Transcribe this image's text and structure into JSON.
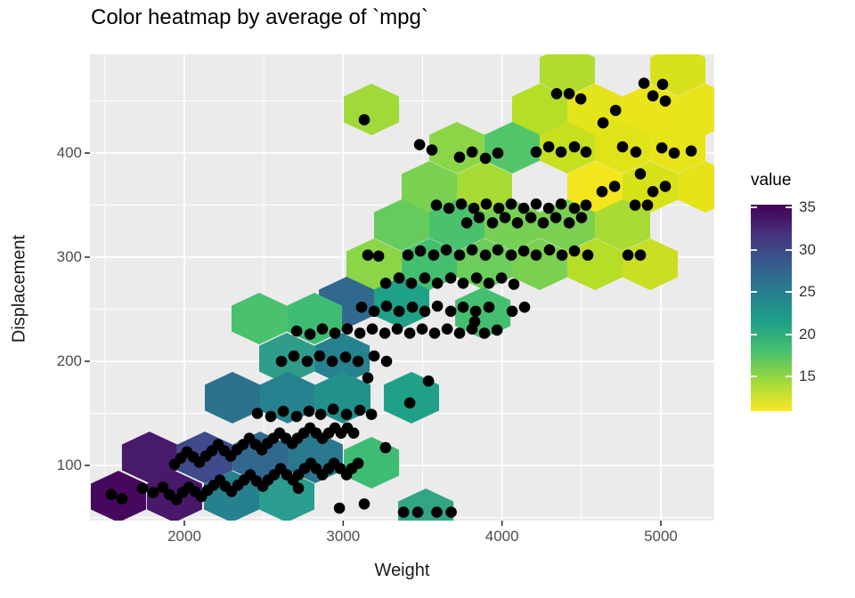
{
  "title": "Color heatmap by average of `mpg`",
  "chart_data": {
    "type": "heatmap",
    "subtype": "hexbin-with-points",
    "title": "Color heatmap by average of `mpg`",
    "xlabel": "Weight",
    "ylabel": "Displacement",
    "x_ticks": [
      2000,
      3000,
      4000,
      5000
    ],
    "x_minor_ticks": [
      1500,
      2500,
      3500,
      4500
    ],
    "y_ticks": [
      100,
      200,
      300,
      400
    ],
    "y_minor_ticks": [
      50,
      150,
      250,
      350,
      450
    ],
    "xlim": [
      1405,
      5340
    ],
    "ylim": [
      47,
      495
    ],
    "grid": true,
    "panel_bg": "#ebebeb",
    "grid_color": "#ffffff",
    "point_color": "#000000",
    "legend": {
      "title": "value",
      "ticks": [
        35,
        30,
        25,
        20,
        15
      ],
      "range": [
        11,
        35.3
      ],
      "position": "right",
      "gradient_top_to_bottom": [
        "#440154",
        "#46327e",
        "#365c8d",
        "#277f8e",
        "#1fa187",
        "#4ac16d",
        "#9fda3a",
        "#fde725"
      ]
    },
    "hex_width_x_units": 345,
    "hex_height_y_units": 49.6,
    "hexbins": [
      {
        "wt": 4411,
        "disp": 479.5,
        "value": 16.1,
        "color": "#b0dd2f"
      },
      {
        "wt": 3178,
        "disp": 441.9,
        "value": 17.0,
        "color": "#a0da39"
      },
      {
        "wt": 4237,
        "disp": 441.9,
        "value": 16.0,
        "color": "#b5de26"
      },
      {
        "wt": 4585,
        "disp": 441.9,
        "value": 13.0,
        "color": "#e4e41b"
      },
      {
        "wt": 4933,
        "disp": 441.9,
        "value": 12.7,
        "color": "#eae51a"
      },
      {
        "wt": 5281,
        "disp": 441.9,
        "value": 12.8,
        "color": "#e8e51b"
      },
      {
        "wt": 5107,
        "disp": 479.5,
        "value": 13.8,
        "color": "#d8e21c"
      },
      {
        "wt": 3716,
        "disp": 405.1,
        "value": 18.0,
        "color": "#8bd646"
      },
      {
        "wt": 4064,
        "disp": 405.1,
        "value": 20.5,
        "color": "#52c569"
      },
      {
        "wt": 4411,
        "disp": 405.1,
        "value": 15.0,
        "color": "#c6e01f"
      },
      {
        "wt": 4759,
        "disp": 405.1,
        "value": 13.2,
        "color": "#e0e318"
      },
      {
        "wt": 5107,
        "disp": 405.1,
        "value": 12.8,
        "color": "#e8e41a"
      },
      {
        "wt": 3542,
        "disp": 367.5,
        "value": 18.8,
        "color": "#7ad151"
      },
      {
        "wt": 3890,
        "disp": 367.5,
        "value": 16.8,
        "color": "#a5db33"
      },
      {
        "wt": 4585,
        "disp": 367.5,
        "value": 12.0,
        "color": "#f4e61c"
      },
      {
        "wt": 4933,
        "disp": 367.5,
        "value": 13.8,
        "color": "#d8e219"
      },
      {
        "wt": 5281,
        "disp": 367.5,
        "value": 12.9,
        "color": "#e6e419"
      },
      {
        "wt": 3368,
        "disp": 330.8,
        "value": 19.7,
        "color": "#66cb5d"
      },
      {
        "wt": 3716,
        "disp": 330.8,
        "value": 20.8,
        "color": "#4ac16d"
      },
      {
        "wt": 4064,
        "disp": 330.8,
        "value": 19.0,
        "color": "#75d054"
      },
      {
        "wt": 4411,
        "disp": 330.8,
        "value": 18.8,
        "color": "#7ad151"
      },
      {
        "wt": 4759,
        "disp": 330.8,
        "value": 16.7,
        "color": "#a8db34"
      },
      {
        "wt": 3194,
        "disp": 293.2,
        "value": 18.0,
        "color": "#8bd646"
      },
      {
        "wt": 3542,
        "disp": 293.2,
        "value": 21.0,
        "color": "#44bf70"
      },
      {
        "wt": 3890,
        "disp": 293.2,
        "value": 19.5,
        "color": "#6ccd5a"
      },
      {
        "wt": 4237,
        "disp": 293.2,
        "value": 18.8,
        "color": "#7ad151"
      },
      {
        "wt": 4585,
        "disp": 293.2,
        "value": 16.0,
        "color": "#b5de29"
      },
      {
        "wt": 4933,
        "disp": 293.2,
        "value": 14.8,
        "color": "#cade24"
      },
      {
        "wt": 3021,
        "disp": 256.4,
        "value": 27.5,
        "color": "#31688e"
      },
      {
        "wt": 3368,
        "disp": 256.4,
        "value": 23.5,
        "color": "#1fa187"
      },
      {
        "wt": 3879,
        "disp": 246.2,
        "value": 21.0,
        "color": "#44bf70"
      },
      {
        "wt": 2471,
        "disp": 241.0,
        "value": 20.8,
        "color": "#4ac16d"
      },
      {
        "wt": 2819,
        "disp": 241.0,
        "value": 21.5,
        "color": "#3fbc73"
      },
      {
        "wt": 2645,
        "disp": 202.6,
        "value": 24.0,
        "color": "#2f9d8a"
      },
      {
        "wt": 2993,
        "disp": 202.6,
        "value": 25.5,
        "color": "#26828e"
      },
      {
        "wt": 2303,
        "disp": 165.0,
        "value": 27.0,
        "color": "#2c718e"
      },
      {
        "wt": 2650,
        "disp": 165.0,
        "value": 25.5,
        "color": "#26828e"
      },
      {
        "wt": 2998,
        "disp": 165.0,
        "value": 25.0,
        "color": "#21918c"
      },
      {
        "wt": 3430,
        "disp": 165.0,
        "value": 23.5,
        "color": "#1fa187"
      },
      {
        "wt": 1781,
        "disp": 107.7,
        "value": 33.5,
        "color": "#481a6c"
      },
      {
        "wt": 2129,
        "disp": 107.7,
        "value": 29.5,
        "color": "#3e4a89"
      },
      {
        "wt": 2477,
        "disp": 107.7,
        "value": 27.5,
        "color": "#31688e"
      },
      {
        "wt": 2824,
        "disp": 107.7,
        "value": 26.5,
        "color": "#2a788e"
      },
      {
        "wt": 3178,
        "disp": 102.6,
        "value": 21.5,
        "color": "#3fbc73"
      },
      {
        "wt": 1585,
        "disp": 70.1,
        "value": 34.5,
        "color": "#46085c"
      },
      {
        "wt": 1938,
        "disp": 70.1,
        "value": 33.8,
        "color": "#48186a"
      },
      {
        "wt": 2297,
        "disp": 70.1,
        "value": 26.0,
        "color": "#26818e"
      },
      {
        "wt": 2645,
        "disp": 70.1,
        "value": 23.7,
        "color": "#2a9d8f"
      },
      {
        "wt": 3520,
        "disp": 53.0,
        "value": 23.0,
        "color": "#31a584"
      }
    ],
    "points": [
      [
        1540,
        72
      ],
      [
        1607,
        68
      ],
      [
        1736,
        78
      ],
      [
        1804,
        74
      ],
      [
        1865,
        79
      ],
      [
        1905,
        72
      ],
      [
        1950,
        67
      ],
      [
        1989,
        74
      ],
      [
        2028,
        79
      ],
      [
        2067,
        75
      ],
      [
        2107,
        70
      ],
      [
        2146,
        76
      ],
      [
        2185,
        81
      ],
      [
        2224,
        86
      ],
      [
        2258,
        80
      ],
      [
        2297,
        75
      ],
      [
        2337,
        81
      ],
      [
        2376,
        86
      ],
      [
        2415,
        91
      ],
      [
        2454,
        85
      ],
      [
        2494,
        80
      ],
      [
        2527,
        86
      ],
      [
        2566,
        91
      ],
      [
        2606,
        97
      ],
      [
        2645,
        91
      ],
      [
        2684,
        86
      ],
      [
        2718,
        91
      ],
      [
        2757,
        97
      ],
      [
        2796,
        102
      ],
      [
        2830,
        97
      ],
      [
        2869,
        91
      ],
      [
        2909,
        97
      ],
      [
        2942,
        102
      ],
      [
        2982,
        97
      ],
      [
        3021,
        91
      ],
      [
        3054,
        97
      ],
      [
        3094,
        102
      ],
      [
        2718,
        78
      ],
      [
        2976,
        59
      ],
      [
        3133,
        63
      ],
      [
        3380,
        55
      ],
      [
        3470,
        55
      ],
      [
        3590,
        55
      ],
      [
        3680,
        55
      ],
      [
        1938,
        101
      ],
      [
        1978,
        107
      ],
      [
        2017,
        113
      ],
      [
        2056,
        108
      ],
      [
        2095,
        103
      ],
      [
        2135,
        109
      ],
      [
        2174,
        114
      ],
      [
        2213,
        120
      ],
      [
        2252,
        114
      ],
      [
        2292,
        109
      ],
      [
        2331,
        115
      ],
      [
        2370,
        120
      ],
      [
        2409,
        126
      ],
      [
        2449,
        120
      ],
      [
        2488,
        115
      ],
      [
        2522,
        121
      ],
      [
        2561,
        126
      ],
      [
        2600,
        131
      ],
      [
        2639,
        126
      ],
      [
        2679,
        121
      ],
      [
        2712,
        126
      ],
      [
        2752,
        131
      ],
      [
        2791,
        136
      ],
      [
        2830,
        131
      ],
      [
        2869,
        126
      ],
      [
        2909,
        131
      ],
      [
        2948,
        136
      ],
      [
        2987,
        131
      ],
      [
        3026,
        136
      ],
      [
        3066,
        131
      ],
      [
        3267,
        117
      ],
      [
        2460,
        150
      ],
      [
        2544,
        147
      ],
      [
        2623,
        152
      ],
      [
        2707,
        147
      ],
      [
        2785,
        152
      ],
      [
        2858,
        149
      ],
      [
        2937,
        154
      ],
      [
        3021,
        149
      ],
      [
        3105,
        153
      ],
      [
        3178,
        149
      ],
      [
        3155,
        184
      ],
      [
        3419,
        160
      ],
      [
        3537,
        181
      ],
      [
        2611,
        200
      ],
      [
        2690,
        205
      ],
      [
        2774,
        200
      ],
      [
        2852,
        205
      ],
      [
        2931,
        200
      ],
      [
        3015,
        204
      ],
      [
        3094,
        200
      ],
      [
        3195,
        205
      ],
      [
        3273,
        200
      ],
      [
        2707,
        229
      ],
      [
        2791,
        226
      ],
      [
        2869,
        231
      ],
      [
        2948,
        227
      ],
      [
        3026,
        231
      ],
      [
        3105,
        227
      ],
      [
        3183,
        231
      ],
      [
        3262,
        227
      ],
      [
        3340,
        231
      ],
      [
        3419,
        227
      ],
      [
        3497,
        231
      ],
      [
        3576,
        227
      ],
      [
        3655,
        231
      ],
      [
        3733,
        227
      ],
      [
        3812,
        231
      ],
      [
        3890,
        227
      ],
      [
        3969,
        230
      ],
      [
        3828,
        238
      ],
      [
        3116,
        252
      ],
      [
        3195,
        248
      ],
      [
        3273,
        253
      ],
      [
        3352,
        248
      ],
      [
        3436,
        252
      ],
      [
        3514,
        248
      ],
      [
        3593,
        253
      ],
      [
        3677,
        248
      ],
      [
        3755,
        252
      ],
      [
        3834,
        248
      ],
      [
        3918,
        252
      ],
      [
        4064,
        248
      ],
      [
        4142,
        252
      ],
      [
        3268,
        275
      ],
      [
        3352,
        280
      ],
      [
        3430,
        275
      ],
      [
        3514,
        280
      ],
      [
        3593,
        275
      ],
      [
        3677,
        280
      ],
      [
        3755,
        275
      ],
      [
        3840,
        280
      ],
      [
        3918,
        275
      ],
      [
        3997,
        280
      ],
      [
        4075,
        274
      ],
      [
        3155,
        302
      ],
      [
        3223,
        301
      ],
      [
        3408,
        302
      ],
      [
        3486,
        306
      ],
      [
        3570,
        302
      ],
      [
        3649,
        307
      ],
      [
        3733,
        302
      ],
      [
        3812,
        307
      ],
      [
        3896,
        302
      ],
      [
        3974,
        307
      ],
      [
        4058,
        302
      ],
      [
        4137,
        306
      ],
      [
        4215,
        302
      ],
      [
        4299,
        307
      ],
      [
        4378,
        302
      ],
      [
        4456,
        306
      ],
      [
        4540,
        302
      ],
      [
        4793,
        302
      ],
      [
        4871,
        302
      ],
      [
        3778,
        333
      ],
      [
        3856,
        338
      ],
      [
        3940,
        333
      ],
      [
        4019,
        338
      ],
      [
        4097,
        333
      ],
      [
        4182,
        338
      ],
      [
        4260,
        333
      ],
      [
        4339,
        338
      ],
      [
        4423,
        333
      ],
      [
        4501,
        338
      ],
      [
        3587,
        350
      ],
      [
        3666,
        347
      ],
      [
        3744,
        351
      ],
      [
        3823,
        347
      ],
      [
        3901,
        351
      ],
      [
        3980,
        347
      ],
      [
        4058,
        351
      ],
      [
        4137,
        347
      ],
      [
        4215,
        351
      ],
      [
        4294,
        347
      ],
      [
        4372,
        351
      ],
      [
        4456,
        347
      ],
      [
        4529,
        350
      ],
      [
        4838,
        350
      ],
      [
        4916,
        350
      ],
      [
        4630,
        363
      ],
      [
        4709,
        368
      ],
      [
        4871,
        380
      ],
      [
        4950,
        363
      ],
      [
        5028,
        368
      ],
      [
        3481,
        408
      ],
      [
        3559,
        403
      ],
      [
        3733,
        396
      ],
      [
        3812,
        401
      ],
      [
        3896,
        395
      ],
      [
        3974,
        400
      ],
      [
        4215,
        401
      ],
      [
        4294,
        406
      ],
      [
        4372,
        401
      ],
      [
        4456,
        406
      ],
      [
        4529,
        401
      ],
      [
        4759,
        406
      ],
      [
        4843,
        401
      ],
      [
        5006,
        405
      ],
      [
        5084,
        400
      ],
      [
        5191,
        402
      ],
      [
        3133,
        432
      ],
      [
        4344,
        457
      ],
      [
        4423,
        457
      ],
      [
        4496,
        452
      ],
      [
        4636,
        429
      ],
      [
        4715,
        441
      ],
      [
        4894,
        467
      ],
      [
        4950,
        455
      ],
      [
        5011,
        466
      ],
      [
        5028,
        450
      ]
    ]
  }
}
